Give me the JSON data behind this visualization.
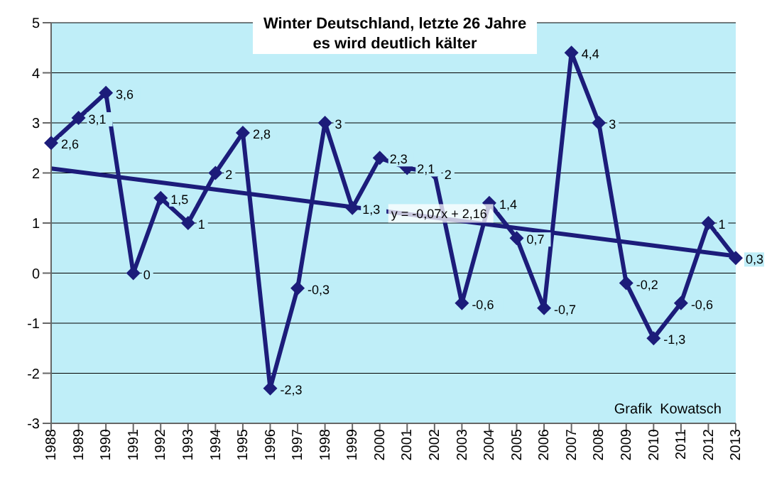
{
  "chart_data": {
    "type": "line",
    "title": "Winter Deutschland, letzte 26 Jahre",
    "subtitle": "es wird deutlich kälter",
    "categories": [
      "1988",
      "1989",
      "1990",
      "1991",
      "1992",
      "1993",
      "1994",
      "1995",
      "1996",
      "1997",
      "1998",
      "1999",
      "2000",
      "2001",
      "2002",
      "2003",
      "2004",
      "2005",
      "2006",
      "2007",
      "2008",
      "2009",
      "2010",
      "2011",
      "2012",
      "2013"
    ],
    "series": [
      {
        "color": "#1c1c7a",
        "marker": "diamond",
        "values": [
          2.6,
          3.1,
          3.6,
          0,
          1.5,
          1,
          2,
          2.8,
          -2.3,
          -0.3,
          3,
          1.3,
          2.3,
          2.1,
          2,
          -0.6,
          1.4,
          0.7,
          -0.7,
          4.4,
          3,
          -0.2,
          -1.3,
          -0.6,
          1,
          0.3
        ],
        "value_labels": [
          "2,6",
          "3,1",
          "3,6",
          "0",
          "1,5",
          "1",
          "2",
          "2,8",
          "-2,3",
          "-0,3",
          "3",
          "1,3",
          "2,3",
          "2,1",
          "2",
          "-0,6",
          "1,4",
          "0,7",
          "-0,7",
          "4,4",
          "3",
          "-0,2",
          "-1,3",
          "-0,6",
          "1",
          "0,3"
        ]
      },
      {
        "type": "line",
        "color": "#1c1c7a",
        "marker": "none",
        "values": [
          2.09,
          null,
          null,
          null,
          null,
          null,
          null,
          null,
          null,
          null,
          null,
          null,
          null,
          null,
          null,
          null,
          null,
          null,
          null,
          null,
          null,
          null,
          null,
          null,
          null,
          0.34
        ]
      }
    ],
    "ylim": [
      -3,
      5
    ],
    "yticks": [
      -3,
      -2,
      -1,
      0,
      1,
      2,
      3,
      4,
      5
    ],
    "grid": "y",
    "line_style": "solid",
    "annotations": [
      {
        "text": "y = -0,07x + 2,16",
        "x": "2000",
        "y": 1.15
      },
      "Grafik  Kowatsch"
    ]
  }
}
